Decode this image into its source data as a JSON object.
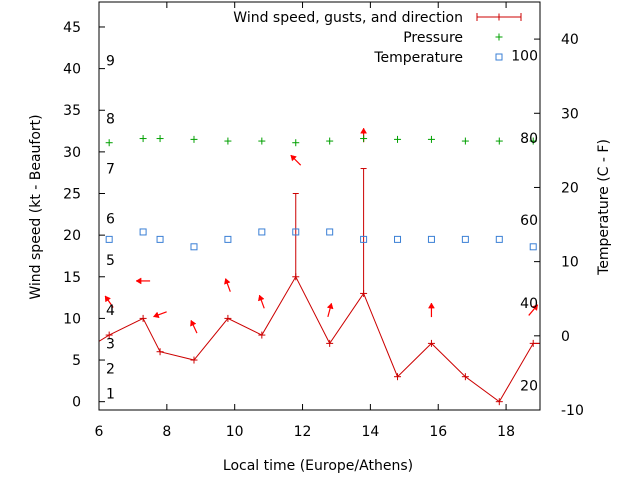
{
  "chart_data": {
    "type": "line",
    "title": "",
    "xlabel": "Local time (Europe/Athens)",
    "ylabel_left": "Wind speed (kt - Beaufort)",
    "ylabel_right": "Temperature (C - F)",
    "x_axis": {
      "range": [
        6,
        19
      ],
      "ticks": [
        6,
        8,
        10,
        12,
        14,
        16,
        18
      ]
    },
    "y_left_axis": {
      "range": [
        -1,
        48
      ],
      "ticks": [
        0,
        5,
        10,
        15,
        20,
        25,
        30,
        35,
        40,
        45
      ]
    },
    "y_right_axis": {
      "range": [
        -10,
        45
      ],
      "ticks": [
        -10,
        0,
        10,
        20,
        30,
        40
      ]
    },
    "beaufort_labels": [
      {
        "label": "1",
        "kt": 1
      },
      {
        "label": "2",
        "kt": 4
      },
      {
        "label": "3",
        "kt": 7
      },
      {
        "label": "4",
        "kt": 11
      },
      {
        "label": "5",
        "kt": 17
      },
      {
        "label": "6",
        "kt": 22
      },
      {
        "label": "7",
        "kt": 28
      },
      {
        "label": "8",
        "kt": 34
      },
      {
        "label": "9",
        "kt": 41
      }
    ],
    "fahrenheit_labels": [
      {
        "label": "20",
        "celsius": -6.7
      },
      {
        "label": "40",
        "celsius": 4.4
      },
      {
        "label": "60",
        "celsius": 15.6
      },
      {
        "label": "80",
        "celsius": 26.7
      },
      {
        "label": "100",
        "celsius": 37.8
      }
    ],
    "legend": {
      "wind": "Wind speed, gusts, and direction",
      "pressure": "Pressure",
      "temperature": "Temperature"
    },
    "colors": {
      "wind": "#cc0000",
      "arrow": "#ff0000",
      "pressure": "#00a000",
      "temperature": "#3a7fd5",
      "axis": "#000000"
    },
    "wind_series": {
      "x": [
        5.9,
        6.3,
        7.3,
        7.8,
        8.8,
        9.8,
        10.8,
        11.8,
        12.8,
        13.8,
        14.8,
        15.8,
        16.8,
        17.8,
        18.8,
        19.0
      ],
      "y": [
        7,
        8,
        10,
        6,
        5,
        10,
        8,
        15,
        7,
        13,
        3,
        7,
        3,
        0,
        7,
        7
      ],
      "gust_high": [
        null,
        null,
        null,
        null,
        null,
        null,
        null,
        25,
        null,
        28,
        null,
        null,
        null,
        null,
        null,
        null
      ]
    },
    "pressure_series": {
      "x": [
        6.3,
        7.3,
        7.8,
        8.8,
        9.8,
        10.8,
        11.8,
        12.8,
        13.8,
        14.8,
        15.8,
        16.8,
        17.8,
        18.8
      ],
      "y": [
        31.1,
        31.6,
        31.6,
        31.5,
        31.3,
        31.3,
        31.1,
        31.3,
        31.6,
        31.5,
        31.5,
        31.3,
        31.3,
        31.3
      ]
    },
    "temperature_series": {
      "x": [
        6.3,
        7.3,
        7.8,
        8.8,
        9.8,
        10.8,
        11.8,
        12.8,
        13.8,
        14.8,
        15.8,
        16.8,
        17.8,
        18.8
      ],
      "y": [
        13,
        14,
        13,
        12,
        13,
        14,
        14,
        14,
        13,
        13,
        13,
        13,
        13,
        12
      ]
    },
    "wind_directions": {
      "x": [
        6.3,
        7.3,
        7.8,
        8.8,
        9.8,
        10.8,
        11.8,
        12.8,
        13.8,
        15.8,
        18.8
      ],
      "y": [
        12,
        14.5,
        10.5,
        9,
        14,
        12,
        29,
        11,
        32,
        11,
        11
      ],
      "angle": [
        235,
        180,
        160,
        245,
        250,
        250,
        225,
        285,
        270,
        270,
        310
      ]
    }
  }
}
